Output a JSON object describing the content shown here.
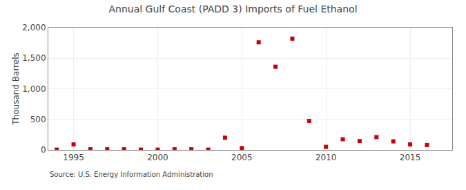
{
  "chart_data": {
    "type": "scatter",
    "title": "Annual Gulf Coast (PADD 3) Imports of Fuel Ethanol",
    "ylabel": "Thousand Barrels",
    "annotations": [
      "Source: U.S. Energy Information Administration"
    ],
    "x": [
      1994,
      1995,
      1996,
      1997,
      1998,
      1999,
      2000,
      2001,
      2002,
      2003,
      2004,
      2005,
      2006,
      2007,
      2008,
      2009,
      2010,
      2011,
      2012,
      2013,
      2014,
      2015,
      2016
    ],
    "values": [
      5,
      90,
      10,
      10,
      10,
      5,
      5,
      10,
      10,
      5,
      200,
      30,
      1760,
      1360,
      1820,
      475,
      50,
      175,
      145,
      210,
      140,
      90,
      80
    ],
    "color": "#cc0000",
    "marker": "square",
    "xlim": [
      1993.5,
      2017.5
    ],
    "xticks": [
      1995,
      2000,
      2005,
      2010,
      2015
    ],
    "ylim": [
      0,
      2000
    ],
    "yticks": [
      0,
      500,
      {
        "value": 1000,
        "label": "1,000"
      },
      {
        "value": 1500,
        "label": "1,500"
      },
      {
        "value": 2000,
        "label": "2,000"
      }
    ],
    "grid": true
  }
}
